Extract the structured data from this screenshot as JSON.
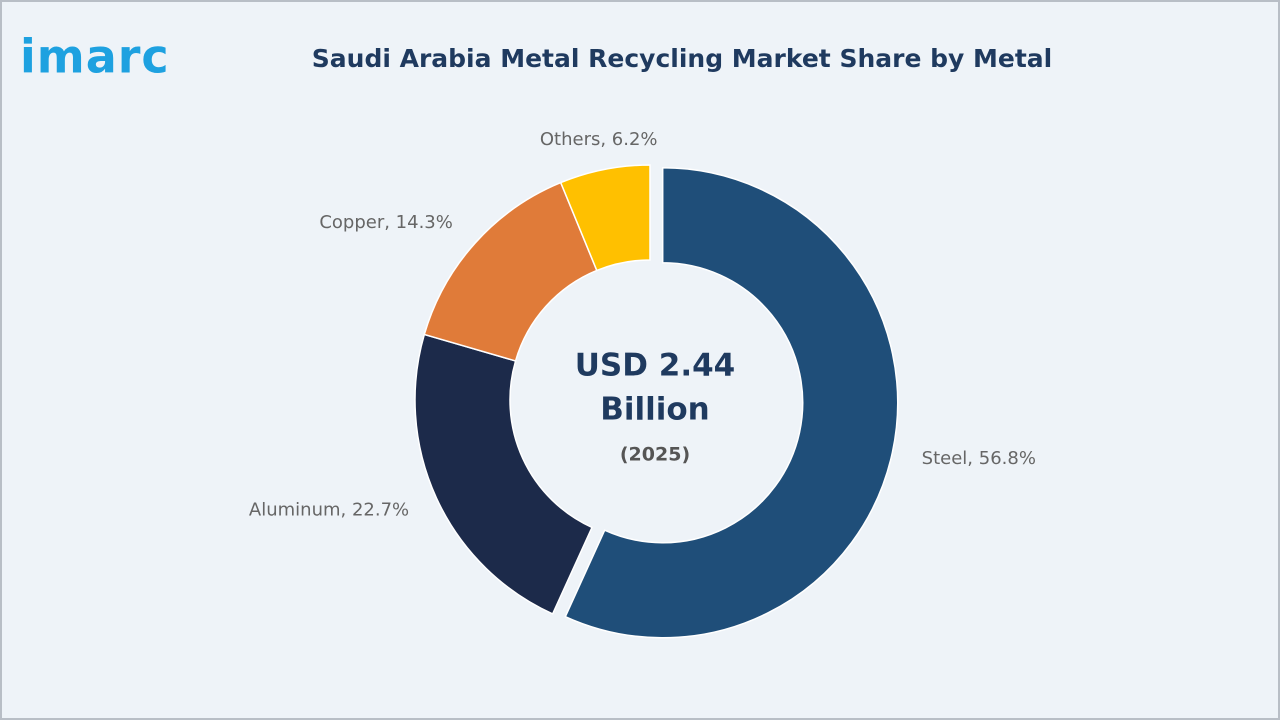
{
  "logo": "imarc",
  "chart_data": {
    "type": "donut",
    "title": "Saudi Arabia Metal Recycling Market Share by Metal",
    "values": [
      56.8,
      22.7,
      14.3,
      6.2
    ],
    "value_labels": [
      "Steel, 56.8%",
      "Aluminum, 22.7%",
      "Copper, 14.3%",
      "Others, 6.2%"
    ],
    "colors": [
      "#1f4e79",
      "#1c2a4a",
      "#e07b39",
      "#ffc000"
    ],
    "center_text": [
      "USD 2.44",
      "Billion",
      "(2025)"
    ]
  }
}
